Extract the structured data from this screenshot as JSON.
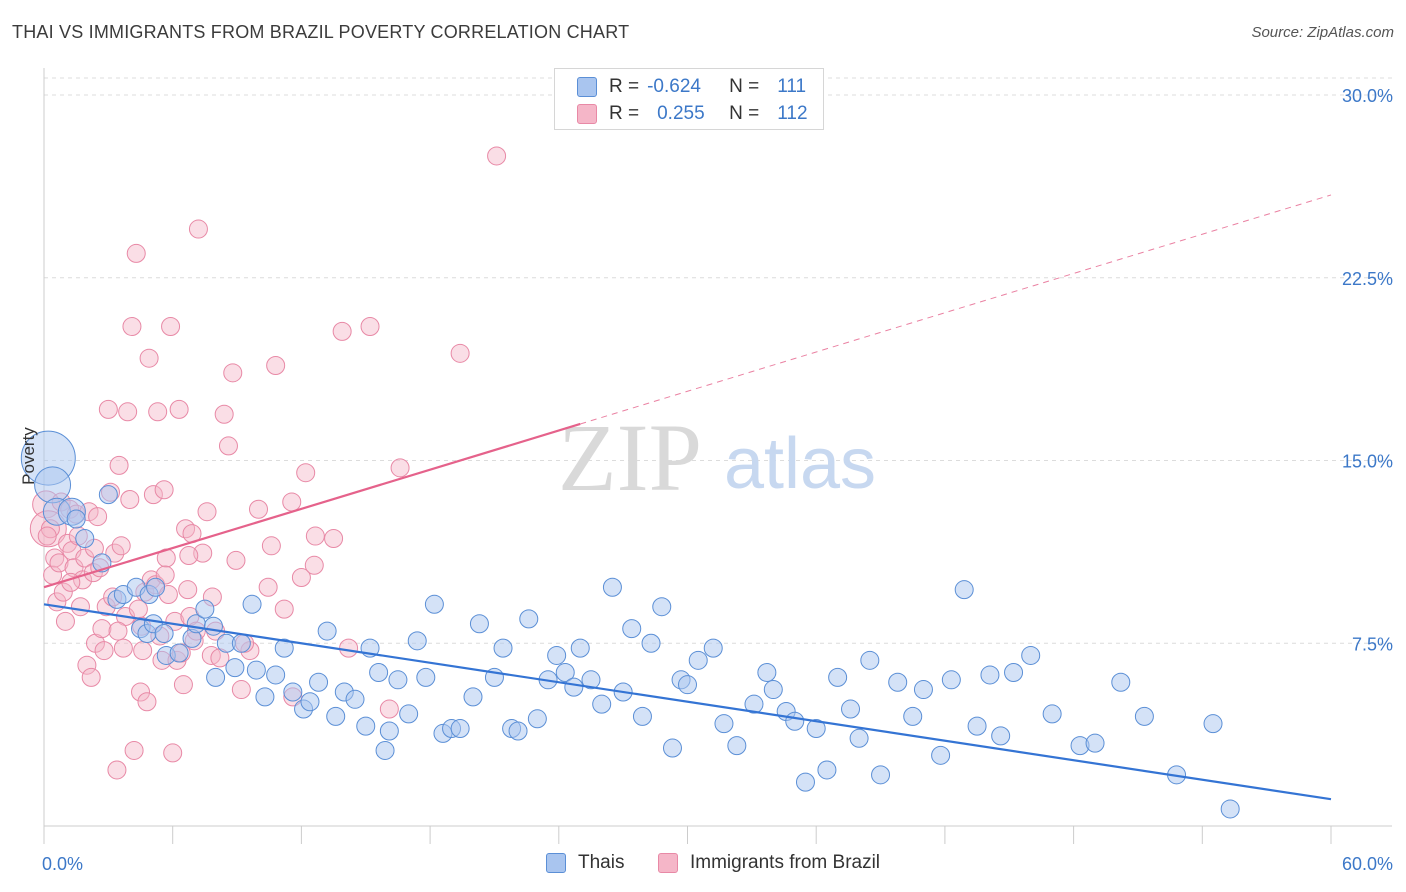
{
  "header": {
    "title": "THAI VS IMMIGRANTS FROM BRAZIL POVERTY CORRELATION CHART",
    "source": "Source: ZipAtlas.com"
  },
  "watermark": {
    "zip": "ZIP",
    "atlas": "atlas"
  },
  "stats": {
    "rows": [
      {
        "r_label": "R =",
        "r_value": "-0.624",
        "n_label": "N =",
        "n_value": "111"
      },
      {
        "r_label": "R =",
        "r_value": "0.255",
        "n_label": "N =",
        "n_value": "112"
      }
    ]
  },
  "legend": {
    "thais": "Thais",
    "brazil": "Immigrants from Brazil"
  },
  "colors": {
    "blue_fill": "#a9c5ef",
    "blue_stroke": "#5b8fd6",
    "blue_line": "#3474d4",
    "pink_fill": "#f5b6c8",
    "pink_stroke": "#e889a6",
    "pink_line": "#e5628b",
    "tick_label": "#3c78c8",
    "grid": "#dcdcdc"
  },
  "chart_data": {
    "type": "scatter",
    "title": "THAI VS IMMIGRANTS FROM BRAZIL POVERTY CORRELATION CHART",
    "xlabel": "",
    "ylabel": "Poverty",
    "xlim": [
      0,
      60
    ],
    "ylim": [
      0,
      30.7
    ],
    "x_tick_labels": [
      "0.0%",
      "60.0%"
    ],
    "y_ticks": [
      7.5,
      15.0,
      22.5,
      30.0
    ],
    "y_tick_labels": [
      "7.5%",
      "15.0%",
      "22.5%",
      "30.0%"
    ],
    "series": [
      {
        "name": "Thais",
        "r": -0.624,
        "n": 111,
        "trend": {
          "x": [
            0,
            60
          ],
          "y": [
            9.1,
            1.1
          ]
        },
        "points": [
          [
            0.2,
            15.1,
            3
          ],
          [
            0.4,
            14.0,
            2
          ],
          [
            0.6,
            12.9,
            1.5
          ],
          [
            1.3,
            12.9,
            1.5
          ],
          [
            1.5,
            12.6,
            1
          ],
          [
            1.9,
            11.8,
            1
          ],
          [
            2.7,
            10.8,
            1
          ],
          [
            3.0,
            13.6,
            1
          ],
          [
            3.4,
            9.3,
            1
          ],
          [
            3.7,
            9.5,
            1
          ],
          [
            4.3,
            9.8,
            1
          ],
          [
            4.5,
            8.1,
            1
          ],
          [
            4.8,
            7.9,
            1
          ],
          [
            4.9,
            9.5,
            1
          ],
          [
            5.1,
            8.3,
            1
          ],
          [
            5.6,
            7.9,
            1
          ],
          [
            5.2,
            9.8,
            1
          ],
          [
            5.7,
            7.0,
            1
          ],
          [
            6.3,
            7.1,
            1
          ],
          [
            6.9,
            7.7,
            1
          ],
          [
            7.1,
            8.3,
            1
          ],
          [
            7.5,
            8.9,
            1
          ],
          [
            7.9,
            8.2,
            1
          ],
          [
            8.0,
            6.1,
            1
          ],
          [
            8.5,
            7.5,
            1
          ],
          [
            8.9,
            6.5,
            1
          ],
          [
            9.2,
            7.5,
            1
          ],
          [
            9.7,
            9.1,
            1
          ],
          [
            9.9,
            6.4,
            1
          ],
          [
            10.3,
            5.3,
            1
          ],
          [
            10.8,
            6.2,
            1
          ],
          [
            11.2,
            7.3,
            1
          ],
          [
            11.6,
            5.5,
            1
          ],
          [
            12.1,
            4.8,
            1
          ],
          [
            12.4,
            5.1,
            1
          ],
          [
            12.8,
            5.9,
            1
          ],
          [
            13.2,
            8.0,
            1
          ],
          [
            13.6,
            4.5,
            1
          ],
          [
            14.0,
            5.5,
            1
          ],
          [
            14.5,
            5.2,
            1
          ],
          [
            15.0,
            4.1,
            1
          ],
          [
            15.2,
            7.3,
            1
          ],
          [
            15.6,
            6.3,
            1
          ],
          [
            15.9,
            3.1,
            1
          ],
          [
            16.1,
            3.9,
            1
          ],
          [
            16.5,
            6.0,
            1
          ],
          [
            17.0,
            4.6,
            1
          ],
          [
            17.4,
            7.6,
            1
          ],
          [
            17.8,
            6.1,
            1
          ],
          [
            18.2,
            9.1,
            1
          ],
          [
            18.6,
            3.8,
            1
          ],
          [
            19.0,
            4.0,
            1
          ],
          [
            19.4,
            4.0,
            1
          ],
          [
            20.0,
            5.3,
            1
          ],
          [
            20.3,
            8.3,
            1
          ],
          [
            21.0,
            6.1,
            1
          ],
          [
            21.4,
            7.3,
            1
          ],
          [
            21.8,
            4.0,
            1
          ],
          [
            22.1,
            3.9,
            1
          ],
          [
            22.6,
            8.5,
            1
          ],
          [
            23.0,
            4.4,
            1
          ],
          [
            23.5,
            6.0,
            1
          ],
          [
            23.9,
            7.0,
            1
          ],
          [
            24.3,
            6.3,
            1
          ],
          [
            24.7,
            5.7,
            1
          ],
          [
            25.0,
            7.3,
            1
          ],
          [
            25.5,
            6.0,
            1
          ],
          [
            26.0,
            5.0,
            1
          ],
          [
            26.5,
            9.8,
            1
          ],
          [
            27.0,
            5.5,
            1
          ],
          [
            27.4,
            8.1,
            1
          ],
          [
            27.9,
            4.5,
            1
          ],
          [
            28.3,
            7.5,
            1
          ],
          [
            28.8,
            9.0,
            1
          ],
          [
            29.3,
            3.2,
            1
          ],
          [
            29.7,
            6.0,
            1
          ],
          [
            30.0,
            5.8,
            1
          ],
          [
            30.5,
            6.8,
            1
          ],
          [
            31.2,
            7.3,
            1
          ],
          [
            31.7,
            4.2,
            1
          ],
          [
            32.3,
            3.3,
            1
          ],
          [
            33.1,
            5.0,
            1
          ],
          [
            33.7,
            6.3,
            1
          ],
          [
            34.0,
            5.6,
            1
          ],
          [
            34.6,
            4.7,
            1
          ],
          [
            35.0,
            4.3,
            1
          ],
          [
            35.5,
            1.8,
            1
          ],
          [
            36.0,
            4.0,
            1
          ],
          [
            36.5,
            2.3,
            1
          ],
          [
            37.0,
            6.1,
            1
          ],
          [
            37.6,
            4.8,
            1
          ],
          [
            38.0,
            3.6,
            1
          ],
          [
            38.5,
            6.8,
            1
          ],
          [
            39.0,
            2.1,
            1
          ],
          [
            39.8,
            5.9,
            1
          ],
          [
            40.5,
            4.5,
            1
          ],
          [
            41.0,
            5.6,
            1
          ],
          [
            41.8,
            2.9,
            1
          ],
          [
            42.3,
            6.0,
            1
          ],
          [
            42.9,
            9.7,
            1
          ],
          [
            43.5,
            4.1,
            1
          ],
          [
            44.1,
            6.2,
            1
          ],
          [
            44.6,
            3.7,
            1
          ],
          [
            45.2,
            6.3,
            1
          ],
          [
            46.0,
            7.0,
            1
          ],
          [
            47.0,
            4.6,
            1
          ],
          [
            48.3,
            3.3,
            1
          ],
          [
            49.0,
            3.4,
            1
          ],
          [
            50.2,
            5.9,
            1
          ],
          [
            51.3,
            4.5,
            1
          ],
          [
            52.8,
            2.1,
            1
          ],
          [
            54.5,
            4.2,
            1
          ],
          [
            55.3,
            0.7,
            1
          ]
        ]
      },
      {
        "name": "Immigrants from Brazil",
        "r": 0.255,
        "n": 112,
        "trend": {
          "x": [
            0,
            25
          ],
          "y": [
            9.8,
            16.5
          ]
        },
        "trend_extension": {
          "x": [
            25,
            60
          ],
          "y": [
            16.5,
            25.9
          ]
        },
        "points": [
          [
            0.1,
            13.2,
            1.5
          ],
          [
            0.2,
            12.2,
            2
          ],
          [
            0.3,
            12.2,
            1
          ],
          [
            0.4,
            10.3,
            1
          ],
          [
            0.5,
            11.0,
            1
          ],
          [
            0.6,
            9.2,
            1
          ],
          [
            0.7,
            10.8,
            1
          ],
          [
            0.8,
            13.3,
            1
          ],
          [
            0.9,
            9.6,
            1
          ],
          [
            1.0,
            8.4,
            1
          ],
          [
            1.1,
            11.6,
            1
          ],
          [
            1.2,
            13.0,
            1
          ],
          [
            1.3,
            11.3,
            1
          ],
          [
            1.4,
            10.6,
            1
          ],
          [
            1.5,
            12.8,
            1
          ],
          [
            1.6,
            11.9,
            1
          ],
          [
            1.7,
            9.0,
            1
          ],
          [
            1.8,
            10.1,
            1
          ],
          [
            1.9,
            11.0,
            1
          ],
          [
            2.0,
            6.6,
            1
          ],
          [
            2.1,
            12.9,
            1
          ],
          [
            2.2,
            6.1,
            1
          ],
          [
            2.3,
            10.4,
            1
          ],
          [
            2.4,
            7.5,
            1
          ],
          [
            2.5,
            12.7,
            1
          ],
          [
            2.6,
            10.6,
            1
          ],
          [
            2.7,
            8.1,
            1
          ],
          [
            2.8,
            7.2,
            1
          ],
          [
            2.9,
            9.0,
            1
          ],
          [
            3.0,
            17.1,
            1
          ],
          [
            3.1,
            13.7,
            1
          ],
          [
            3.2,
            9.4,
            1
          ],
          [
            3.3,
            11.2,
            1
          ],
          [
            3.4,
            2.3,
            1
          ],
          [
            3.5,
            14.8,
            1
          ],
          [
            3.6,
            11.5,
            1
          ],
          [
            3.7,
            7.3,
            1
          ],
          [
            3.8,
            8.6,
            1
          ],
          [
            3.9,
            17.0,
            1
          ],
          [
            4.0,
            13.4,
            1
          ],
          [
            4.1,
            20.5,
            1
          ],
          [
            4.2,
            3.1,
            1
          ],
          [
            4.3,
            23.5,
            1
          ],
          [
            4.4,
            8.9,
            1
          ],
          [
            4.5,
            5.5,
            1
          ],
          [
            4.6,
            7.2,
            1
          ],
          [
            4.7,
            9.6,
            1
          ],
          [
            4.8,
            5.1,
            1
          ],
          [
            4.9,
            19.2,
            1
          ],
          [
            5.0,
            10.1,
            1
          ],
          [
            5.1,
            13.6,
            1
          ],
          [
            5.2,
            9.9,
            1
          ],
          [
            5.3,
            17.0,
            1
          ],
          [
            5.4,
            7.8,
            1
          ],
          [
            5.5,
            6.8,
            1
          ],
          [
            5.6,
            13.8,
            1
          ],
          [
            5.7,
            11.0,
            1
          ],
          [
            5.8,
            9.5,
            1
          ],
          [
            5.9,
            20.5,
            1
          ],
          [
            6.0,
            3.0,
            1
          ],
          [
            6.1,
            8.4,
            1
          ],
          [
            6.2,
            6.8,
            1
          ],
          [
            6.3,
            17.1,
            1
          ],
          [
            6.4,
            7.1,
            1
          ],
          [
            6.5,
            5.8,
            1
          ],
          [
            6.6,
            12.2,
            1
          ],
          [
            6.7,
            9.7,
            1
          ],
          [
            6.8,
            8.6,
            1
          ],
          [
            6.9,
            12.0,
            1
          ],
          [
            7.0,
            7.6,
            1
          ],
          [
            7.1,
            8.0,
            1
          ],
          [
            7.2,
            24.5,
            1
          ],
          [
            7.4,
            11.2,
            1
          ],
          [
            7.6,
            12.9,
            1
          ],
          [
            7.8,
            7.0,
            1
          ],
          [
            8.0,
            8.0,
            1
          ],
          [
            8.2,
            6.9,
            1
          ],
          [
            8.4,
            16.9,
            1
          ],
          [
            8.6,
            15.6,
            1
          ],
          [
            8.8,
            18.6,
            1
          ],
          [
            9.2,
            5.6,
            1
          ],
          [
            9.6,
            7.2,
            1
          ],
          [
            10.0,
            13.0,
            1
          ],
          [
            10.6,
            11.5,
            1
          ],
          [
            10.8,
            18.9,
            1
          ],
          [
            11.2,
            8.9,
            1
          ],
          [
            11.6,
            5.3,
            1
          ],
          [
            12.0,
            10.2,
            1
          ],
          [
            12.2,
            14.5,
            1
          ],
          [
            12.6,
            10.7,
            1
          ],
          [
            13.5,
            11.8,
            1
          ],
          [
            13.9,
            20.3,
            1
          ],
          [
            14.2,
            7.3,
            1
          ],
          [
            15.2,
            20.5,
            1
          ],
          [
            16.1,
            4.8,
            1
          ],
          [
            16.6,
            14.7,
            1
          ],
          [
            19.4,
            19.4,
            1
          ],
          [
            21.1,
            27.5,
            1
          ],
          [
            0.15,
            11.9,
            1
          ],
          [
            1.25,
            10.0,
            1
          ],
          [
            2.35,
            11.4,
            1
          ],
          [
            3.45,
            8.0,
            1
          ],
          [
            4.55,
            8.2,
            1
          ],
          [
            5.65,
            10.3,
            1
          ],
          [
            6.75,
            11.1,
            1
          ],
          [
            7.85,
            9.4,
            1
          ],
          [
            8.95,
            10.9,
            1
          ],
          [
            9.35,
            7.5,
            1
          ],
          [
            10.45,
            9.8,
            1
          ],
          [
            11.55,
            13.3,
            1
          ],
          [
            12.65,
            11.9,
            1
          ]
        ]
      }
    ]
  }
}
